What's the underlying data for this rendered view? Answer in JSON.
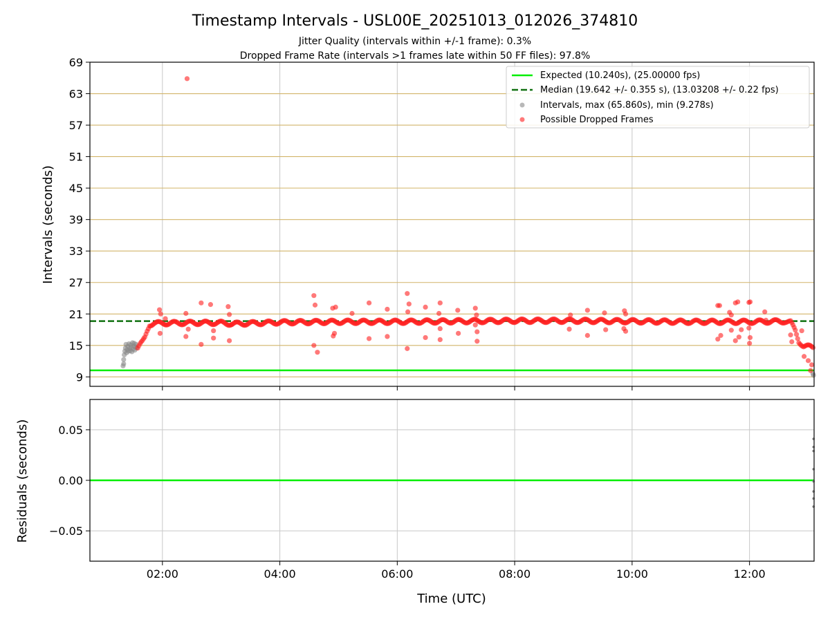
{
  "chart_data": [
    {
      "type": "scatter",
      "panel": "intervals",
      "title": "Timestamp Intervals - USL00E_20251013_012026_374810",
      "subtitle_lines": [
        "Jitter Quality (intervals within +/-1 frame): 0.3%",
        "Dropped Frame Rate (intervals >1 frames late within 50 FF files): 97.8%"
      ],
      "xlabel": "",
      "ylabel": "Intervals (seconds)",
      "x_unit": "hours UTC",
      "xlim": [
        0.765,
        13.1
      ],
      "ylim": [
        7.2,
        69
      ],
      "y_ticks": [
        9,
        15,
        21,
        27,
        33,
        39,
        45,
        51,
        57,
        63,
        69
      ],
      "x_ticks": [
        {
          "value": 2,
          "label": "02:00"
        },
        {
          "value": 4,
          "label": "04:00"
        },
        {
          "value": 6,
          "label": "06:00"
        },
        {
          "value": 8,
          "label": "08:00"
        },
        {
          "value": 10,
          "label": "10:00"
        },
        {
          "value": 12,
          "label": "12:00"
        }
      ],
      "grid": true,
      "hgrid_color": "#d2b469",
      "vgrid_color": "#c8c8c8",
      "legend_position": "upper right",
      "legend": [
        {
          "label": "Expected (10.240s), (25.00000 fps)",
          "style": "line",
          "color": "#00ee00"
        },
        {
          "label": "Median (19.642 +/- 0.355 s), (13.03208 +/- 0.22 fps)",
          "style": "dashed",
          "color": "#107010"
        },
        {
          "label": "Intervals, max (65.860s), min (9.278s)",
          "style": "point",
          "color": "#888888"
        },
        {
          "label": "Possible Dropped Frames",
          "style": "point",
          "color": "#ff2020"
        }
      ],
      "expected_line": 10.24,
      "median_line": 19.642,
      "series": [
        {
          "label_ref": "intervals",
          "color": "#888888",
          "points": [
            [
              1.33,
              11.1
            ],
            [
              1.34,
              11.5
            ],
            [
              1.34,
              12.3
            ],
            [
              1.35,
              13.2
            ],
            [
              1.36,
              13.9
            ],
            [
              1.37,
              14.5
            ],
            [
              1.38,
              15.2
            ],
            [
              1.39,
              13.6
            ],
            [
              1.4,
              14.2
            ],
            [
              1.41,
              14.8
            ],
            [
              1.42,
              13.9
            ],
            [
              1.43,
              15.3
            ],
            [
              1.44,
              14.4
            ],
            [
              1.45,
              14.0
            ],
            [
              1.46,
              15.1
            ],
            [
              1.47,
              14.6
            ],
            [
              1.48,
              13.8
            ],
            [
              1.49,
              15.5
            ],
            [
              1.5,
              14.3
            ],
            [
              1.51,
              14.9
            ],
            [
              1.52,
              15.4
            ],
            [
              1.53,
              14.1
            ],
            [
              1.54,
              14.7
            ],
            [
              1.55,
              15.2
            ],
            [
              1.56,
              14.5
            ],
            [
              13.08,
              9.6
            ],
            [
              13.09,
              9.3
            ]
          ]
        },
        {
          "label_ref": "dropped",
          "color": "#ff2020",
          "points": [
            [
              2.42,
              65.86
            ],
            [
              1.95,
              21.8
            ],
            [
              1.97,
              21.0
            ],
            [
              1.96,
              17.3
            ],
            [
              2.05,
              20.1
            ],
            [
              2.4,
              21.1
            ],
            [
              2.4,
              16.7
            ],
            [
              2.44,
              18.1
            ],
            [
              2.66,
              23.1
            ],
            [
              2.66,
              15.2
            ],
            [
              2.82,
              22.8
            ],
            [
              2.87,
              17.8
            ],
            [
              2.87,
              16.4
            ],
            [
              3.12,
              22.4
            ],
            [
              3.14,
              20.9
            ],
            [
              3.14,
              15.9
            ],
            [
              3.18,
              19.0
            ],
            [
              4.58,
              24.5
            ],
            [
              4.6,
              22.7
            ],
            [
              4.58,
              15.0
            ],
            [
              4.64,
              13.7
            ],
            [
              4.9,
              22.1
            ],
            [
              4.95,
              22.3
            ],
            [
              4.93,
              17.3
            ],
            [
              4.91,
              16.8
            ],
            [
              5.23,
              21.1
            ],
            [
              5.52,
              23.1
            ],
            [
              5.52,
              16.3
            ],
            [
              5.83,
              21.9
            ],
            [
              5.83,
              16.7
            ],
            [
              6.17,
              24.9
            ],
            [
              6.2,
              22.9
            ],
            [
              6.17,
              14.4
            ],
            [
              6.18,
              21.4
            ],
            [
              6.48,
              22.3
            ],
            [
              6.48,
              16.5
            ],
            [
              6.73,
              23.1
            ],
            [
              6.71,
              21.1
            ],
            [
              6.73,
              18.2
            ],
            [
              6.73,
              16.1
            ],
            [
              7.03,
              21.7
            ],
            [
              7.04,
              17.3
            ],
            [
              7.33,
              22.1
            ],
            [
              7.35,
              20.8
            ],
            [
              7.36,
              17.6
            ],
            [
              7.36,
              15.8
            ],
            [
              7.33,
              18.9
            ],
            [
              8.95,
              20.8
            ],
            [
              8.93,
              18.1
            ],
            [
              9.24,
              21.7
            ],
            [
              9.24,
              16.9
            ],
            [
              9.53,
              21.2
            ],
            [
              9.55,
              18.0
            ],
            [
              9.87,
              21.6
            ],
            [
              9.89,
              21.0
            ],
            [
              9.86,
              18.2
            ],
            [
              9.89,
              17.7
            ],
            [
              11.46,
              22.6
            ],
            [
              11.49,
              22.6
            ],
            [
              11.46,
              16.2
            ],
            [
              11.51,
              16.9
            ],
            [
              11.66,
              21.3
            ],
            [
              11.69,
              20.8
            ],
            [
              11.69,
              17.9
            ],
            [
              11.76,
              23.1
            ],
            [
              11.8,
              23.3
            ],
            [
              11.76,
              15.9
            ],
            [
              11.82,
              16.6
            ],
            [
              11.86,
              18.0
            ],
            [
              11.99,
              23.2
            ],
            [
              12.01,
              23.3
            ],
            [
              11.99,
              18.3
            ],
            [
              12.01,
              16.5
            ],
            [
              12.0,
              15.4
            ],
            [
              12.26,
              21.4
            ],
            [
              12.28,
              19.8
            ],
            [
              12.7,
              17.0
            ],
            [
              12.72,
              15.7
            ],
            [
              12.89,
              17.8
            ],
            [
              12.93,
              12.9
            ],
            [
              13.0,
              12.1
            ],
            [
              13.04,
              10.2
            ],
            [
              13.06,
              11.3
            ]
          ],
          "band": [
            [
              1.58,
              14.5
            ],
            [
              1.62,
              15.1
            ],
            [
              1.66,
              15.6
            ],
            [
              1.7,
              16.4
            ],
            [
              1.74,
              17.8
            ],
            [
              1.78,
              19.0
            ],
            [
              1.85,
              19.2
            ],
            [
              2.5,
              19.3
            ],
            [
              3.0,
              19.3
            ],
            [
              3.2,
              19.1
            ],
            [
              4.0,
              19.4
            ],
            [
              5.0,
              19.5
            ],
            [
              6.0,
              19.5
            ],
            [
              7.0,
              19.6
            ],
            [
              8.0,
              19.7
            ],
            [
              9.0,
              19.7
            ],
            [
              10.0,
              19.6
            ],
            [
              11.0,
              19.5
            ],
            [
              12.0,
              19.5
            ],
            [
              12.6,
              19.6
            ],
            [
              12.7,
              19.4
            ],
            [
              12.78,
              17.8
            ],
            [
              12.84,
              15.8
            ],
            [
              12.92,
              14.9
            ],
            [
              13.1,
              14.6
            ]
          ]
        }
      ]
    },
    {
      "type": "scatter",
      "panel": "residuals",
      "xlabel": "Time (UTC)",
      "ylabel": "Residuals (seconds)",
      "xlim": [
        0.765,
        13.1
      ],
      "ylim": [
        -0.08,
        0.08
      ],
      "y_ticks": [
        {
          "value": 0.05,
          "label": "0.05"
        },
        {
          "value": 0.0,
          "label": "0.00"
        },
        {
          "value": -0.05,
          "label": "−0.05"
        }
      ],
      "zero_line_color": "#00ee00",
      "series": [
        {
          "color": "#888888",
          "points": [
            [
              13.09,
              0.041
            ],
            [
              13.09,
              0.033
            ],
            [
              13.09,
              0.029
            ],
            [
              13.09,
              0.011
            ],
            [
              13.09,
              -0.001
            ],
            [
              13.09,
              -0.011
            ],
            [
              13.09,
              -0.018
            ],
            [
              13.09,
              -0.026
            ]
          ]
        }
      ]
    }
  ]
}
